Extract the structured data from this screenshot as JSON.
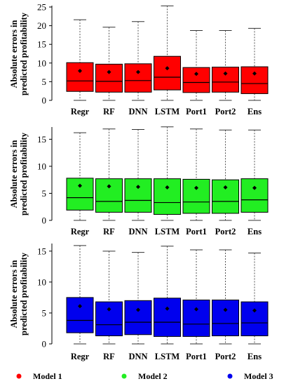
{
  "colors": {
    "model1": "#ff0000",
    "model2": "#22ee22",
    "model3": "#0000ee"
  },
  "legend": [
    {
      "label": "Model 1",
      "color": "#ff0000"
    },
    {
      "label": "Model 2",
      "color": "#22ee22"
    },
    {
      "label": "Model 3",
      "color": "#0000ee"
    }
  ],
  "chart_data": [
    {
      "type": "boxplot",
      "ylabel": [
        "Absolute errors in",
        "predicted profitability"
      ],
      "ylim": [
        0,
        25
      ],
      "yticks": [
        0,
        5,
        10,
        15,
        20,
        25
      ],
      "color": "#ff0000",
      "grid": false,
      "categories": [
        "Regr",
        "RF",
        "DNN",
        "LSTM",
        "Port1",
        "Port2",
        "Ens"
      ],
      "boxes": [
        {
          "min": 0,
          "q1": 2.4,
          "median": 5.2,
          "q3": 10.1,
          "max": 21.6,
          "mean": 7.9
        },
        {
          "min": 0,
          "q1": 2.2,
          "median": 5.1,
          "q3": 9.7,
          "max": 19.6,
          "mean": 7.6
        },
        {
          "min": 0,
          "q1": 2.2,
          "median": 5.3,
          "q3": 9.8,
          "max": 21.1,
          "mean": 7.6
        },
        {
          "min": 0,
          "q1": 2.8,
          "median": 6.2,
          "q3": 11.8,
          "max": 25.3,
          "mean": 8.6
        },
        {
          "min": 0,
          "q1": 2.1,
          "median": 4.8,
          "q3": 8.8,
          "max": 18.7,
          "mean": 7.1
        },
        {
          "min": 0,
          "q1": 2.2,
          "median": 4.9,
          "q3": 8.9,
          "max": 18.7,
          "mean": 7.2
        },
        {
          "min": 0,
          "q1": 1.8,
          "median": 4.5,
          "q3": 9.0,
          "max": 19.3,
          "mean": 7.2
        }
      ]
    },
    {
      "type": "boxplot",
      "ylabel": [
        "Absolute errors in",
        "predicted profitability"
      ],
      "ylim": [
        0,
        17
      ],
      "yticks": [
        0,
        5,
        10,
        15
      ],
      "color": "#22ee22",
      "grid": false,
      "categories": [
        "Regr",
        "RF",
        "DNN",
        "LSTM",
        "Port1",
        "Port2",
        "Ens"
      ],
      "boxes": [
        {
          "min": 0,
          "q1": 1.9,
          "median": 4.2,
          "q3": 7.8,
          "max": 16.2,
          "mean": 6.4
        },
        {
          "min": 0,
          "q1": 1.5,
          "median": 3.5,
          "q3": 7.7,
          "max": 16.9,
          "mean": 6.3
        },
        {
          "min": 0,
          "q1": 1.5,
          "median": 3.7,
          "q3": 7.7,
          "max": 16.8,
          "mean": 6.2
        },
        {
          "min": 0,
          "q1": 1.1,
          "median": 3.3,
          "q3": 7.7,
          "max": 17.3,
          "mean": 6.1
        },
        {
          "min": 0,
          "q1": 1.3,
          "median": 3.4,
          "q3": 7.6,
          "max": 16.9,
          "mean": 6.0
        },
        {
          "min": 0,
          "q1": 1.3,
          "median": 3.5,
          "q3": 7.5,
          "max": 16.7,
          "mean": 6.1
        },
        {
          "min": 0,
          "q1": 1.5,
          "median": 3.8,
          "q3": 7.7,
          "max": 16.7,
          "mean": 6.0
        }
      ]
    },
    {
      "type": "boxplot",
      "ylabel": [
        "Absolute errors in",
        "predicted profitability"
      ],
      "ylim": [
        0,
        16
      ],
      "yticks": [
        0,
        5,
        10,
        15
      ],
      "color": "#0000ee",
      "grid": false,
      "categories": [
        "Regr",
        "RF",
        "DNN",
        "LSTM",
        "Port1",
        "Port2",
        "Ens"
      ],
      "boxes": [
        {
          "min": 0,
          "q1": 1.8,
          "median": 3.8,
          "q3": 7.5,
          "max": 15.9,
          "mean": 6.1
        },
        {
          "min": 0,
          "q1": 1.3,
          "median": 3.1,
          "q3": 6.8,
          "max": 15.0,
          "mean": 5.6
        },
        {
          "min": 0,
          "q1": 1.5,
          "median": 3.5,
          "q3": 7.0,
          "max": 14.8,
          "mean": 5.5
        },
        {
          "min": 0,
          "q1": 1.2,
          "median": 3.5,
          "q3": 7.4,
          "max": 15.8,
          "mean": 5.7
        },
        {
          "min": 0,
          "q1": 1.2,
          "median": 3.2,
          "q3": 7.1,
          "max": 15.2,
          "mean": 5.6
        },
        {
          "min": 0,
          "q1": 1.3,
          "median": 3.3,
          "q3": 7.1,
          "max": 15.2,
          "mean": 5.5
        },
        {
          "min": 0,
          "q1": 1.3,
          "median": 3.4,
          "q3": 6.8,
          "max": 14.7,
          "mean": 5.4
        }
      ]
    }
  ]
}
